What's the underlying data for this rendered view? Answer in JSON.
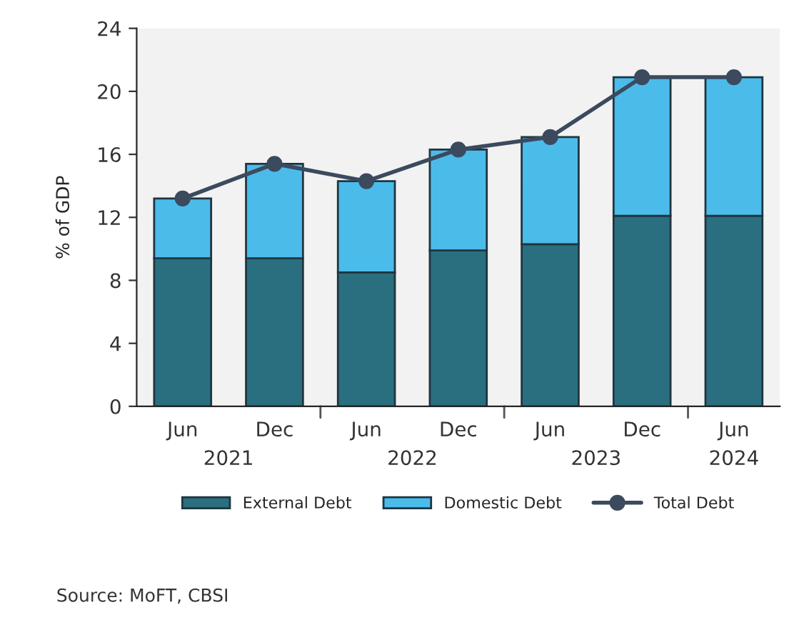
{
  "chart_data": {
    "type": "bar",
    "stacked": true,
    "ylabel": "% of GDP",
    "categories": [
      "Jun",
      "Dec",
      "Jun",
      "Dec",
      "Jun",
      "Dec",
      "Jun"
    ],
    "series": [
      {
        "name": "External Debt",
        "color": "#2a6f7f",
        "values": [
          9.4,
          9.4,
          8.5,
          9.9,
          10.3,
          12.1,
          12.1
        ]
      },
      {
        "name": "Domestic Debt",
        "color": "#4bbbea",
        "values": [
          3.8,
          6.0,
          5.8,
          6.4,
          6.8,
          8.8,
          8.8
        ]
      },
      {
        "name": "Total Debt",
        "type": "line",
        "color": "#3c4a5e",
        "marker": "circle",
        "values": [
          13.2,
          15.4,
          14.3,
          16.3,
          17.1,
          20.9,
          20.9
        ]
      }
    ],
    "ylim": [
      0,
      24
    ],
    "yticks": [
      0,
      4,
      8,
      12,
      16,
      20,
      24
    ],
    "grid": false,
    "legend": "bottom",
    "annotations": [
      "2021",
      "2022",
      "2023",
      "2024",
      "Source: MoFT, CBSI"
    ]
  }
}
